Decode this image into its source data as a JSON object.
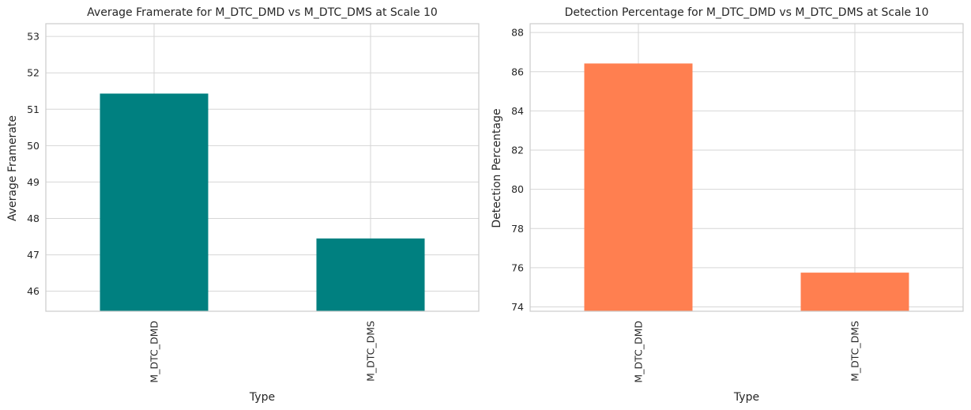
{
  "chart_data": [
    {
      "type": "bar",
      "title": "Average Framerate for M_DTC_DMD vs M_DTC_DMS at Scale 10",
      "xlabel": "Type",
      "ylabel": "Average Framerate",
      "categories": [
        "M_DTC_DMD",
        "M_DTC_DMS"
      ],
      "values": [
        51.43,
        47.45
      ],
      "ylim": [
        45.45,
        53.35
      ],
      "yticks": [
        46,
        47,
        48,
        49,
        50,
        51,
        52,
        53
      ],
      "color": "#008080",
      "grid": true,
      "legend": "none"
    },
    {
      "type": "bar",
      "title": "Detection Percentage for M_DTC_DMD vs M_DTC_DMS at Scale 10",
      "xlabel": "Type",
      "ylabel": "Detection Percentage",
      "categories": [
        "M_DTC_DMD",
        "M_DTC_DMS"
      ],
      "values": [
        86.42,
        75.75
      ],
      "ylim": [
        73.78,
        88.45
      ],
      "yticks": [
        74,
        76,
        78,
        80,
        82,
        84,
        86,
        88
      ],
      "color": "#FF7F50",
      "grid": true,
      "legend": "none"
    }
  ]
}
